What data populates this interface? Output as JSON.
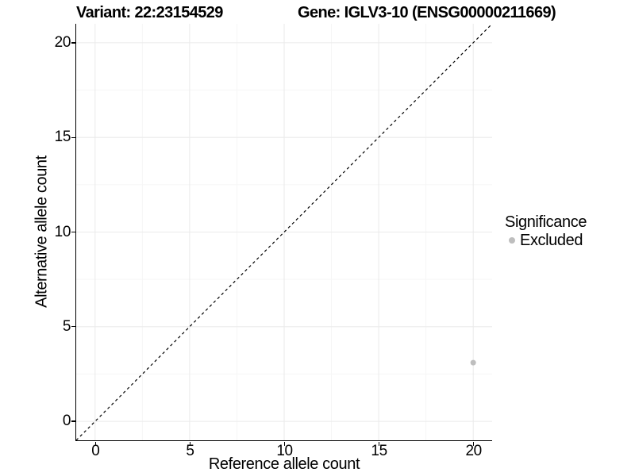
{
  "figure": {
    "background": "#ffffff",
    "text_color": "#000000"
  },
  "chart_data": {
    "type": "scatter",
    "titles": [
      {
        "text": "Variant: 22:23154529"
      },
      {
        "text": "Gene: IGLV3-10 (ENSG00000211669)"
      }
    ],
    "xlabel": "Reference allele count",
    "ylabel": "Alternative allele count",
    "xlim": [
      -1,
      21
    ],
    "ylim": [
      -1,
      21
    ],
    "x_ticks": [
      0,
      5,
      10,
      15,
      20
    ],
    "y_ticks": [
      0,
      5,
      10,
      15,
      20
    ],
    "x_minor_ticks": [
      2.5,
      7.5,
      12.5,
      17.5
    ],
    "y_minor_ticks": [
      2.5,
      7.5,
      12.5,
      17.5
    ],
    "grid": {
      "on": true,
      "major_color": "#ebebeb",
      "minor_color": "#f5f5f5"
    },
    "axis_color": "#000000",
    "identity_line": {
      "label": "y = x",
      "style": "dashed",
      "color": "#000000",
      "from": [
        -1,
        -1
      ],
      "to": [
        21,
        21
      ]
    },
    "series": [
      {
        "name": "Excluded",
        "color": "#bebebe",
        "point_radius": 3.5,
        "points": [
          {
            "x": 20,
            "y": 3.1
          }
        ]
      }
    ],
    "legend": {
      "title": "Significance",
      "position": "right",
      "entries": [
        {
          "label": "Excluded",
          "color": "#bebebe"
        }
      ]
    }
  }
}
